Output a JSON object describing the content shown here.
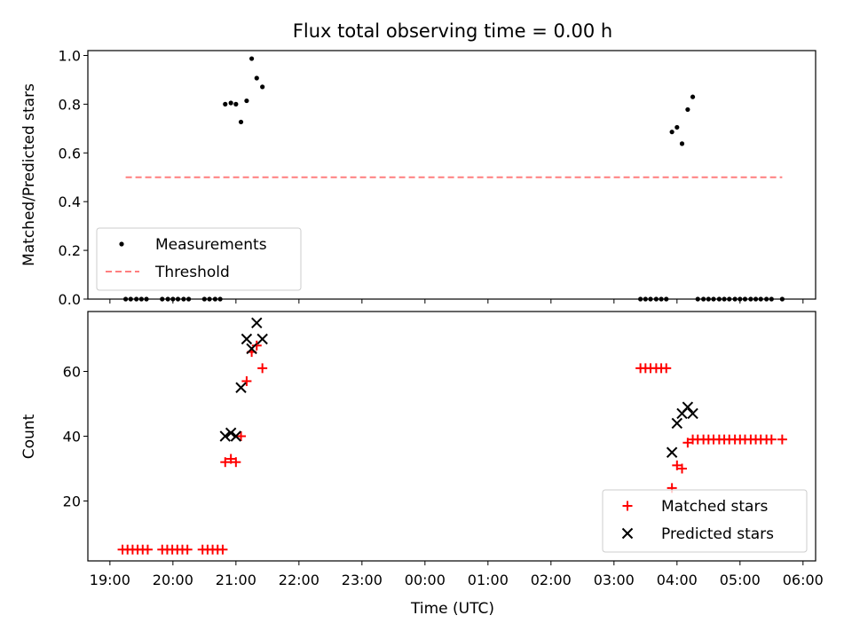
{
  "title": "Flux total observing time = 0.00 h",
  "chart_data": [
    {
      "type": "scatter",
      "ylabel": "Matched/Predicted stars",
      "xlabel": "",
      "ylim": [
        0.0,
        1.02
      ],
      "yticks": [
        0.0,
        0.2,
        0.4,
        0.6,
        0.8,
        1.0
      ],
      "yticklabels": [
        "0.0",
        "0.2",
        "0.4",
        "0.6",
        "0.8",
        "1.0"
      ],
      "legend_position": "lower-left",
      "series": [
        {
          "name": "Measurements",
          "color": "#000000",
          "marker": "dot",
          "x": [
            19.25,
            19.33,
            19.42,
            19.5,
            19.58,
            19.83,
            19.92,
            20.0,
            20.08,
            20.17,
            20.25,
            20.5,
            20.58,
            20.67,
            20.75,
            20.83,
            20.92,
            21.0,
            21.08,
            21.17,
            21.25,
            21.33,
            21.42,
            27.42,
            27.5,
            27.58,
            27.67,
            27.75,
            27.83,
            27.92,
            28.0,
            28.08,
            28.17,
            28.25,
            28.33,
            28.42,
            28.5,
            28.58,
            28.67,
            28.75,
            28.83,
            28.92,
            29.0,
            29.08,
            29.17,
            29.25,
            29.33,
            29.42,
            29.5,
            29.67
          ],
          "y": [
            0,
            0,
            0,
            0,
            0,
            0,
            0,
            0,
            0,
            0,
            0,
            0,
            0,
            0,
            0,
            0.8,
            0.805,
            0.8,
            0.727,
            0.814,
            0.987,
            0.907,
            0.871,
            0,
            0,
            0,
            0,
            0,
            0,
            0.686,
            0.705,
            0.638,
            0.778,
            0.83,
            0,
            0,
            0,
            0,
            0,
            0,
            0,
            0,
            0,
            0,
            0,
            0,
            0,
            0,
            0,
            0
          ]
        },
        {
          "name": "Threshold",
          "color": "#ff7f7f",
          "style": "dashed",
          "x": [
            19.25,
            29.67
          ],
          "y": [
            0.5,
            0.5
          ]
        }
      ]
    },
    {
      "type": "scatter",
      "xlabel": "Time (UTC)",
      "ylabel": "Count",
      "ylim": [
        1.5,
        78.5
      ],
      "yticks": [
        20,
        40,
        60
      ],
      "yticklabels": [
        "20",
        "40",
        "60"
      ],
      "xlim": [
        18.65,
        30.2
      ],
      "xticks": [
        19,
        20,
        21,
        22,
        23,
        24,
        25,
        26,
        27,
        28,
        29,
        30
      ],
      "xticklabels": [
        "19:00",
        "20:00",
        "21:00",
        "22:00",
        "23:00",
        "00:00",
        "01:00",
        "02:00",
        "03:00",
        "04:00",
        "05:00",
        "06:00"
      ],
      "legend_position": "lower-right",
      "series": [
        {
          "name": "Matched stars",
          "color": "#ff0000",
          "marker": "plus",
          "x": [
            19.2,
            19.28,
            19.36,
            19.44,
            19.52,
            19.6,
            19.83,
            19.91,
            19.99,
            20.07,
            20.15,
            20.23,
            20.47,
            20.55,
            20.63,
            20.71,
            20.79,
            20.83,
            20.92,
            21.0,
            21.08,
            21.17,
            21.25,
            21.33,
            21.42,
            27.42,
            27.5,
            27.58,
            27.67,
            27.75,
            27.83,
            27.92,
            28.0,
            28.08,
            28.17,
            28.25,
            28.33,
            28.42,
            28.5,
            28.58,
            28.67,
            28.75,
            28.83,
            28.92,
            29.0,
            29.08,
            29.17,
            29.25,
            29.33,
            29.42,
            29.5,
            29.67
          ],
          "y": [
            5,
            5,
            5,
            5,
            5,
            5,
            5,
            5,
            5,
            5,
            5,
            5,
            5,
            5,
            5,
            5,
            5,
            32,
            33,
            32,
            40,
            57,
            66,
            68,
            61,
            61,
            61,
            61,
            61,
            61,
            61,
            24,
            31,
            30,
            38,
            39,
            39,
            39,
            39,
            39,
            39,
            39,
            39,
            39,
            39,
            39,
            39,
            39,
            39,
            39,
            39,
            39
          ]
        },
        {
          "name": "Predicted stars",
          "color": "#000000",
          "marker": "x",
          "x": [
            20.83,
            20.92,
            21.0,
            21.08,
            21.17,
            21.25,
            21.33,
            21.42,
            27.92,
            28.0,
            28.08,
            28.17,
            28.25
          ],
          "y": [
            40,
            41,
            40,
            55,
            70,
            67,
            75,
            70,
            35,
            44,
            47,
            49,
            47
          ]
        }
      ]
    }
  ]
}
